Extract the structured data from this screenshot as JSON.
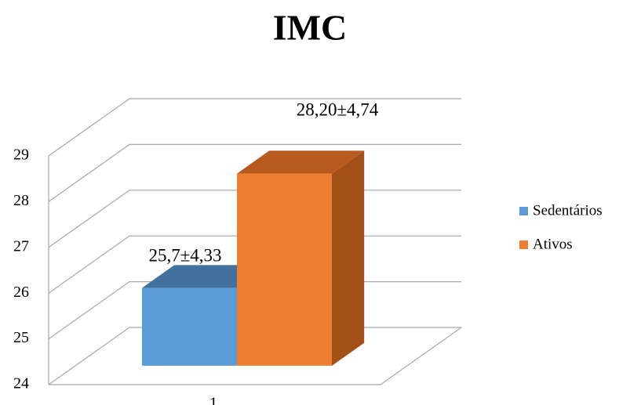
{
  "chart_data": {
    "type": "bar3d",
    "title": "IMC",
    "categories": [
      "1"
    ],
    "series": [
      {
        "name": "Sedentários",
        "color": "#5b9bd5",
        "top": "#41719c",
        "side": "#3c6a94",
        "values": [
          25.7
        ],
        "value_labels": [
          "25,7±4,33"
        ]
      },
      {
        "name": "Ativos",
        "color": "#ed7d31",
        "top": "#b65a1e",
        "side": "#a34f18",
        "values": [
          28.2
        ],
        "value_labels": [
          "28,20±4,74"
        ]
      }
    ],
    "ylim": [
      24,
      29
    ],
    "yticks": [
      24,
      25,
      26,
      27,
      28,
      29
    ],
    "grid": true
  }
}
